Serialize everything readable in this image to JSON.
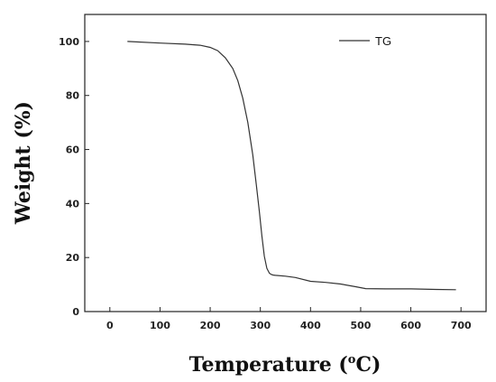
{
  "chart_data": {
    "type": "line",
    "xlabel_main": "Temperature (",
    "xlabel_sup": "o",
    "xlabel_unit": "C)",
    "ylabel": "Weight (%)",
    "xlim": [
      -50,
      750
    ],
    "ylim": [
      0,
      110
    ],
    "xticks": [
      0,
      100,
      200,
      300,
      400,
      500,
      600,
      700
    ],
    "yticks": [
      0,
      20,
      40,
      60,
      80,
      100
    ],
    "grid": false,
    "legend_position": "top-right",
    "series": [
      {
        "name": "TG",
        "color": "#333333",
        "x": [
          35,
          100,
          150,
          180,
          200,
          215,
          230,
          245,
          255,
          265,
          275,
          285,
          292,
          298,
          303,
          308,
          313,
          318,
          322,
          326,
          330,
          350,
          370,
          400,
          430,
          460,
          490,
          510,
          550,
          600,
          650,
          690
        ],
        "y": [
          100,
          99.4,
          99.0,
          98.6,
          97.8,
          96.6,
          94.0,
          90.0,
          85.5,
          79.0,
          70.0,
          58.0,
          47.0,
          37.0,
          28.0,
          20.5,
          16.0,
          14.2,
          13.7,
          13.5,
          13.4,
          13.1,
          12.6,
          11.2,
          10.8,
          10.2,
          9.2,
          8.5,
          8.4,
          8.4,
          8.2,
          8.1
        ]
      }
    ]
  }
}
